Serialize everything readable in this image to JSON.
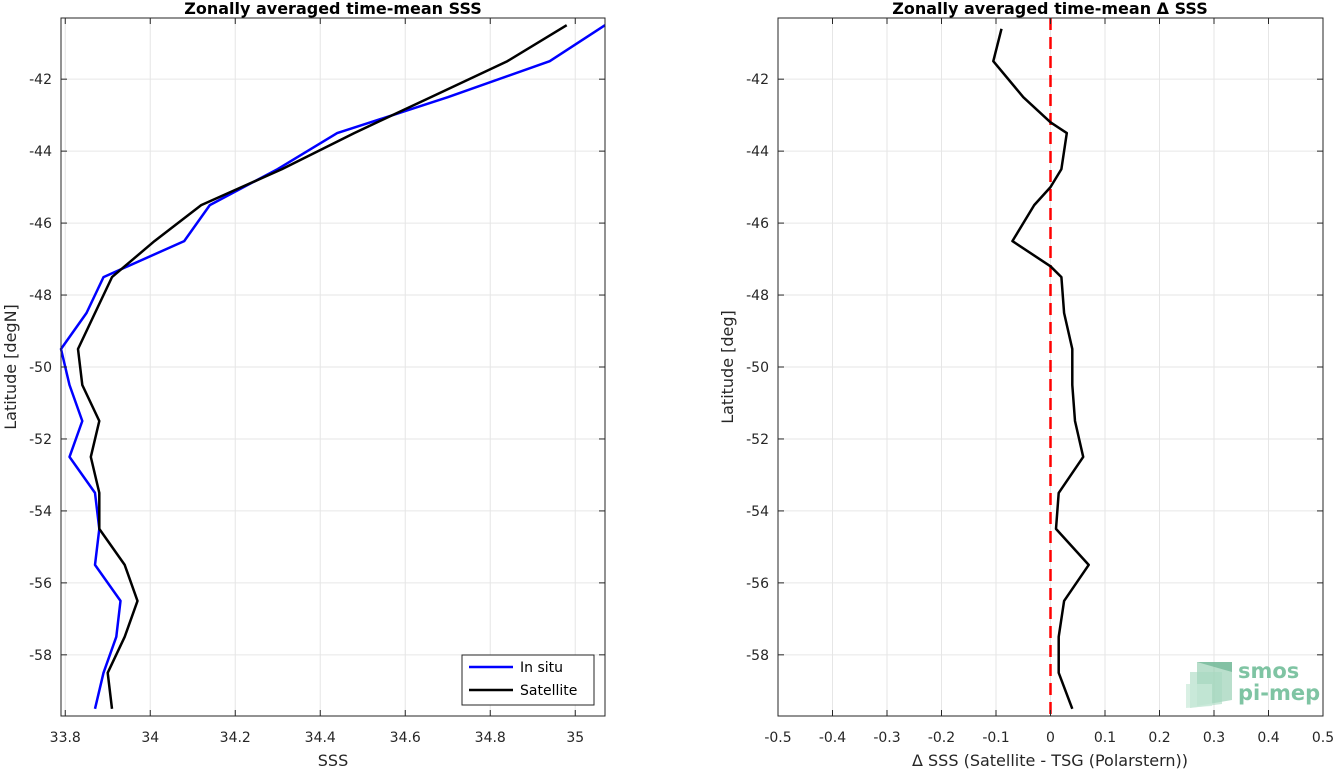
{
  "chart_data": [
    {
      "type": "line",
      "title": "Zonally averaged time-mean SSS",
      "xlabel": "SSS",
      "ylabel": "Latitude [degN]",
      "xlim": [
        33.79,
        35.07
      ],
      "ylim": [
        -59.7,
        -40.3
      ],
      "xticks": [
        33.8,
        34,
        34.2,
        34.4,
        34.6,
        34.8,
        35
      ],
      "xtick_labels": [
        "33.8",
        "34",
        "34.2",
        "34.4",
        "34.6",
        "34.8",
        "35"
      ],
      "yticks": [
        -42,
        -44,
        -46,
        -48,
        -50,
        -52,
        -54,
        -56,
        -58
      ],
      "ytick_labels": [
        "-42",
        "-44",
        "-46",
        "-48",
        "-50",
        "-52",
        "-54",
        "-56",
        "-58"
      ],
      "grid": true,
      "legend_position": "bottom-right",
      "series": [
        {
          "name": "In situ",
          "color": "#0000ff",
          "points": [
            [
              35.07,
              -40.5
            ],
            [
              34.94,
              -41.5
            ],
            [
              34.7,
              -42.5
            ],
            [
              34.44,
              -43.5
            ],
            [
              34.3,
              -44.5
            ],
            [
              34.14,
              -45.5
            ],
            [
              34.08,
              -46.5
            ],
            [
              33.89,
              -47.5
            ],
            [
              33.85,
              -48.5
            ],
            [
              33.79,
              -49.5
            ],
            [
              33.81,
              -50.5
            ],
            [
              33.84,
              -51.5
            ],
            [
              33.81,
              -52.5
            ],
            [
              33.87,
              -53.5
            ],
            [
              33.88,
              -54.5
            ],
            [
              33.87,
              -55.5
            ],
            [
              33.93,
              -56.5
            ],
            [
              33.92,
              -57.5
            ],
            [
              33.89,
              -58.5
            ],
            [
              33.87,
              -59.5
            ]
          ]
        },
        {
          "name": "Satellite",
          "color": "#000000",
          "points": [
            [
              34.98,
              -40.5
            ],
            [
              34.84,
              -41.5
            ],
            [
              34.66,
              -42.5
            ],
            [
              34.48,
              -43.5
            ],
            [
              34.31,
              -44.5
            ],
            [
              34.12,
              -45.5
            ],
            [
              34.01,
              -46.5
            ],
            [
              33.91,
              -47.5
            ],
            [
              33.87,
              -48.5
            ],
            [
              33.83,
              -49.5
            ],
            [
              33.84,
              -50.5
            ],
            [
              33.88,
              -51.5
            ],
            [
              33.86,
              -52.5
            ],
            [
              33.88,
              -53.5
            ],
            [
              33.88,
              -54.5
            ],
            [
              33.94,
              -55.5
            ],
            [
              33.97,
              -56.5
            ],
            [
              33.94,
              -57.5
            ],
            [
              33.9,
              -58.5
            ],
            [
              33.91,
              -59.5
            ]
          ]
        }
      ]
    },
    {
      "type": "line",
      "title": "Zonally averaged time-mean Δ SSS",
      "xlabel": "Δ SSS (Satellite - TSG (Polarstern))",
      "ylabel": "Latitude [deg]",
      "xlim": [
        -0.5,
        0.5
      ],
      "ylim": [
        -59.7,
        -40.3
      ],
      "xticks": [
        -0.5,
        -0.4,
        -0.3,
        -0.2,
        -0.1,
        0,
        0.1,
        0.2,
        0.3,
        0.4,
        0.5
      ],
      "xtick_labels": [
        "-0.5",
        "-0.4",
        "-0.3",
        "-0.2",
        "-0.1",
        "0",
        "0.1",
        "0.2",
        "0.3",
        "0.4",
        "0.5"
      ],
      "yticks": [
        -42,
        -44,
        -46,
        -48,
        -50,
        -52,
        -54,
        -56,
        -58
      ],
      "ytick_labels": [
        "-42",
        "-44",
        "-46",
        "-48",
        "-50",
        "-52",
        "-54",
        "-56",
        "-58"
      ],
      "grid": true,
      "reference_line": {
        "x": 0,
        "color": "#ff0000",
        "style": "dashed"
      },
      "series": [
        {
          "color": "#000000",
          "points": [
            [
              -0.09,
              -40.6
            ],
            [
              -0.105,
              -41.5
            ],
            [
              -0.05,
              -42.5
            ],
            [
              0.0,
              -43.2
            ],
            [
              0.03,
              -43.5
            ],
            [
              0.02,
              -44.5
            ],
            [
              0.0,
              -45.0
            ],
            [
              -0.03,
              -45.5
            ],
            [
              -0.07,
              -46.5
            ],
            [
              0.0,
              -47.2
            ],
            [
              0.02,
              -47.5
            ],
            [
              0.025,
              -48.5
            ],
            [
              0.04,
              -49.5
            ],
            [
              0.04,
              -50.5
            ],
            [
              0.045,
              -51.5
            ],
            [
              0.06,
              -52.5
            ],
            [
              0.015,
              -53.5
            ],
            [
              0.01,
              -54.5
            ],
            [
              0.07,
              -55.5
            ],
            [
              0.025,
              -56.5
            ],
            [
              0.015,
              -57.5
            ],
            [
              0.015,
              -58.5
            ],
            [
              0.04,
              -59.5
            ]
          ]
        }
      ]
    }
  ],
  "left_legend": {
    "items": [
      {
        "label": "In situ",
        "color": "#0000ff"
      },
      {
        "label": "Satellite",
        "color": "#000000"
      }
    ]
  },
  "logo": {
    "line1": "smos",
    "line2": "pi-mep",
    "color": "#7fc4a3"
  }
}
